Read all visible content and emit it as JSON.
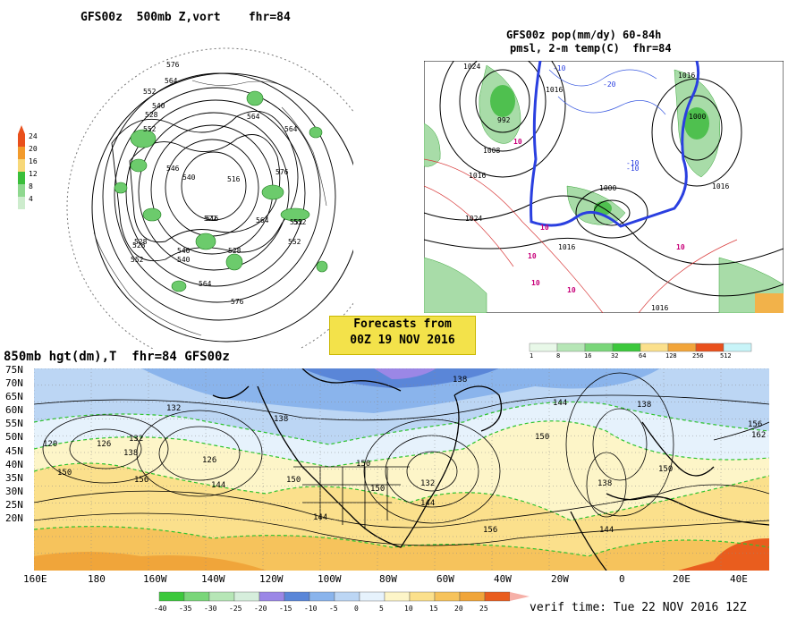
{
  "panels": {
    "polar": {
      "title": "GFS00z  500mb Z,vort    fhr=84",
      "legend_ticks": [
        "24",
        "20",
        "16",
        "12",
        "8",
        "4"
      ],
      "contour_labels": [
        "576",
        "564",
        "552",
        "540",
        "528",
        "546",
        "522",
        "516",
        "528",
        "552",
        "540",
        "564",
        "576",
        "564",
        "552",
        "528",
        "540",
        "552",
        "564",
        "576",
        "564",
        "552",
        "540",
        "528",
        "516",
        "552"
      ]
    },
    "precip": {
      "title_line1": "GFS00z pop(mm/dy) 60-84h",
      "title_line2": "pmsl, 2-m temp(C)  fhr=84",
      "isobar_labels": [
        "1024",
        "992",
        "1000",
        "1016",
        "1016",
        "1024",
        "1016",
        "1008",
        "1000",
        "1016",
        "1016",
        "1016"
      ],
      "temp_labels": [
        "10",
        "-10",
        "-20",
        "-10",
        "10",
        "10",
        "10",
        "10",
        "10",
        "-10"
      ],
      "colorbar_ticks": [
        "1",
        "8",
        "16",
        "32",
        "64",
        "128",
        "256",
        "512"
      ]
    },
    "banner": {
      "line1": "Forecasts from",
      "line2": "00Z 19 NOV 2016"
    },
    "main": {
      "title": "850mb hgt(dm),T  fhr=84 GFS00z",
      "lat_labels": [
        "75N",
        "70N",
        "65N",
        "60N",
        "55N",
        "50N",
        "45N",
        "40N",
        "35N",
        "30N",
        "25N",
        "20N"
      ],
      "lon_labels": [
        "160E",
        "180",
        "160W",
        "140W",
        "120W",
        "100W",
        "80W",
        "60W",
        "40W",
        "20W",
        "0",
        "20E",
        "40E"
      ],
      "height_labels": [
        "120",
        "126",
        "132",
        "132",
        "138",
        "126",
        "150",
        "156",
        "144",
        "150",
        "150",
        "144",
        "138",
        "150",
        "132",
        "144",
        "156",
        "144",
        "138",
        "150",
        "144",
        "138",
        "150",
        "156",
        "162",
        "138"
      ],
      "colorbar_ticks": [
        "-40",
        "-35",
        "-30",
        "-25",
        "-20",
        "-15",
        "-10",
        "-5",
        "0",
        "5",
        "10",
        "15",
        "20",
        "25"
      ],
      "colorbar_colors": [
        "#3cc83c",
        "#7ad67a",
        "#b6e6b6",
        "#d6eedc",
        "#9b87e6",
        "#5a86d8",
        "#8ab4ec",
        "#bcd6f4",
        "#e6f2fc",
        "#fdf5c8",
        "#fbe08c",
        "#f6c35c",
        "#f0a53a",
        "#e95d1e"
      ],
      "verif": "verif time: Tue 22 NOV 2016 12Z"
    }
  }
}
